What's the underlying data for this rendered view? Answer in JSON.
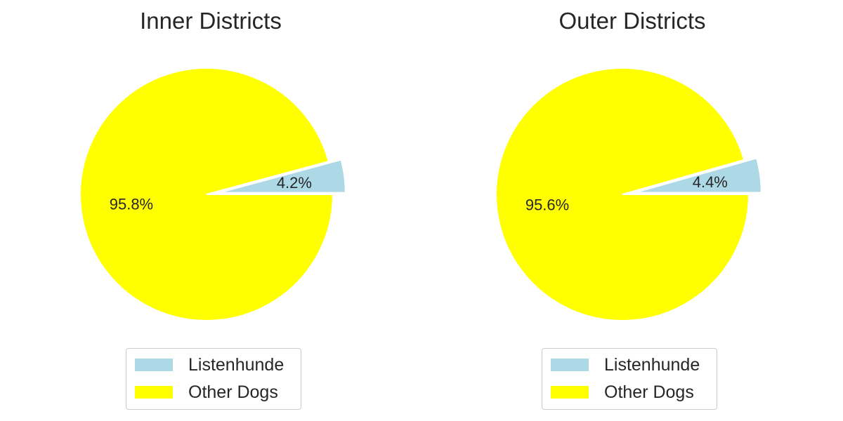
{
  "chart_data": [
    {
      "type": "pie",
      "title": "Inner Districts",
      "categories": [
        "Listenhunde",
        "Other Dogs"
      ],
      "values": [
        4.2,
        95.8
      ],
      "value_labels": [
        "4.2%",
        "95.8%"
      ],
      "colors": [
        "#add8e6",
        "#ffff00"
      ],
      "exploded": [
        "Listenhunde"
      ],
      "legend_position": "bottom-center"
    },
    {
      "type": "pie",
      "title": "Outer Districts",
      "categories": [
        "Listenhunde",
        "Other Dogs"
      ],
      "values": [
        4.4,
        95.6
      ],
      "value_labels": [
        "4.4%",
        "95.6%"
      ],
      "colors": [
        "#add8e6",
        "#ffff00"
      ],
      "exploded": [
        "Listenhunde"
      ],
      "legend_position": "bottom-center"
    }
  ]
}
